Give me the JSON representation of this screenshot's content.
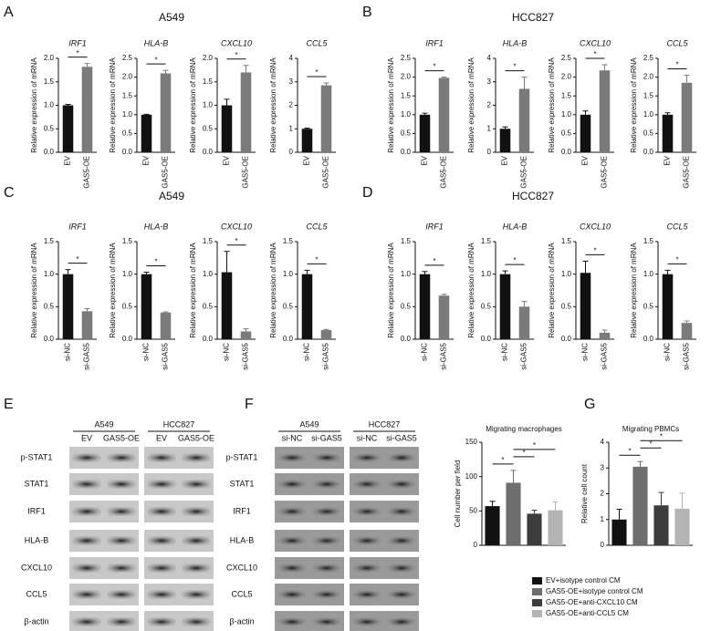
{
  "panel_labels": [
    "A",
    "B",
    "C",
    "D",
    "E",
    "F",
    "G"
  ],
  "panel_titles": [
    "A549",
    "HCC827",
    "A549",
    "HCC827"
  ],
  "chart_data": [
    {
      "type": "bar",
      "title": "IRF1",
      "ylabel": "Relative expression of mRNA",
      "categories": [
        "EV",
        "GAS5-OE"
      ],
      "values": [
        1.0,
        1.82
      ],
      "errors": [
        0.02,
        0.07
      ],
      "colors": [
        "#111111",
        "#7a7a7a"
      ],
      "ylim": [
        0,
        2
      ],
      "yticks": [
        {
          "value": 0,
          "label": "0.0"
        },
        0.5,
        {
          "value": 1,
          "label": "1.0"
        },
        1.5,
        {
          "value": 2,
          "label": "2.0"
        }
      ],
      "annotations": [
        {
          "text": "*",
          "bars": [
            0,
            1
          ]
        }
      ]
    },
    {
      "type": "bar",
      "title": "HLA-B",
      "ylabel": "Relative expression of mRNA",
      "categories": [
        "EV",
        "GAS5-OE"
      ],
      "values": [
        1.0,
        2.1
      ],
      "errors": [
        0.01,
        0.08
      ],
      "colors": [
        "#111111",
        "#7a7a7a"
      ],
      "ylim": [
        0,
        2.5
      ],
      "yticks": [
        {
          "value": 0,
          "label": "0.0"
        },
        0.5,
        {
          "value": 1,
          "label": "1.0"
        },
        1.5,
        {
          "value": 2,
          "label": "2.0"
        },
        2.5
      ],
      "annotations": [
        {
          "text": "*",
          "bars": [
            0,
            1
          ]
        }
      ]
    },
    {
      "type": "bar",
      "title": "CXCL10",
      "ylabel": "Relative expression of mRNA",
      "categories": [
        "EV",
        "GAS5-OE"
      ],
      "values": [
        1.0,
        1.7
      ],
      "errors": [
        0.13,
        0.15
      ],
      "colors": [
        "#111111",
        "#7a7a7a"
      ],
      "ylim": [
        0,
        2
      ],
      "yticks": [
        {
          "value": 0,
          "label": "0.0"
        },
        0.5,
        {
          "value": 1,
          "label": "1.0"
        },
        1.5,
        {
          "value": 2,
          "label": "2.0"
        }
      ],
      "annotations": [
        {
          "text": "*",
          "bars": [
            0,
            1
          ]
        }
      ]
    },
    {
      "type": "bar",
      "title": "CCL5",
      "ylabel": "Relative expression of mRNA",
      "categories": [
        "EV",
        "GAS5-OE"
      ],
      "values": [
        1.0,
        2.85
      ],
      "errors": [
        0.03,
        0.1
      ],
      "colors": [
        "#111111",
        "#7a7a7a"
      ],
      "ylim": [
        0,
        4
      ],
      "yticks": [
        0,
        1,
        2,
        3,
        4
      ],
      "annotations": [
        {
          "text": "*",
          "bars": [
            0,
            1
          ]
        }
      ]
    },
    {
      "type": "bar",
      "title": "IRF1",
      "ylabel": "Relative expression of mRNA",
      "categories": [
        "EV",
        "GAS5-OE"
      ],
      "values": [
        1.0,
        1.98
      ],
      "errors": [
        0.04,
        0.02
      ],
      "colors": [
        "#111111",
        "#7a7a7a"
      ],
      "ylim": [
        0,
        2.5
      ],
      "yticks": [
        {
          "value": 0,
          "label": "0.0"
        },
        0.5,
        {
          "value": 1,
          "label": "1.0"
        },
        1.5,
        {
          "value": 2,
          "label": "2.0"
        },
        2.5
      ],
      "annotations": [
        {
          "text": "*",
          "bars": [
            0,
            1
          ]
        }
      ]
    },
    {
      "type": "bar",
      "title": "HLA-B",
      "ylabel": "Relative expression of mRNA",
      "categories": [
        "EV",
        "GAS5-OE"
      ],
      "values": [
        1.0,
        2.7
      ],
      "errors": [
        0.08,
        0.5
      ],
      "colors": [
        "#111111",
        "#7a7a7a"
      ],
      "ylim": [
        0,
        4
      ],
      "yticks": [
        0,
        1,
        2,
        3,
        4
      ],
      "annotations": [
        {
          "text": "*",
          "bars": [
            0,
            1
          ]
        }
      ]
    },
    {
      "type": "bar",
      "title": "CXCL10",
      "ylabel": "Relative expression of mRNA",
      "categories": [
        "EV",
        "GAS5-OE"
      ],
      "values": [
        1.0,
        2.18
      ],
      "errors": [
        0.1,
        0.15
      ],
      "colors": [
        "#111111",
        "#7a7a7a"
      ],
      "ylim": [
        0,
        2.5
      ],
      "yticks": [
        {
          "value": 0,
          "label": "0.0"
        },
        0.5,
        {
          "value": 1,
          "label": "1.0"
        },
        1.5,
        {
          "value": 2,
          "label": "2.0"
        },
        2.5
      ],
      "annotations": [
        {
          "text": "*",
          "bars": [
            0,
            1
          ]
        }
      ]
    },
    {
      "type": "bar",
      "title": "CCL5",
      "ylabel": "Relative expression of mRNA",
      "categories": [
        "EV",
        "GAS5-OE"
      ],
      "values": [
        1.0,
        1.85
      ],
      "errors": [
        0.05,
        0.2
      ],
      "colors": [
        "#111111",
        "#7a7a7a"
      ],
      "ylim": [
        0,
        2.5
      ],
      "yticks": [
        {
          "value": 0,
          "label": "0.0"
        },
        0.5,
        {
          "value": 1,
          "label": "1.0"
        },
        1.5,
        {
          "value": 2,
          "label": "2.0"
        },
        2.5
      ],
      "annotations": [
        {
          "text": "*",
          "bars": [
            0,
            1
          ]
        }
      ]
    },
    {
      "type": "bar",
      "title": "IRF1",
      "ylabel": "Relative expression of mRNA",
      "categories": [
        "si-NC",
        "si-GAS5"
      ],
      "values": [
        1.0,
        0.43
      ],
      "errors": [
        0.07,
        0.04
      ],
      "colors": [
        "#111111",
        "#7a7a7a"
      ],
      "ylim": [
        0,
        1.5
      ],
      "yticks": [
        {
          "value": 0,
          "label": "0.0"
        },
        0.5,
        {
          "value": 1,
          "label": "1.0"
        },
        1.5
      ],
      "annotations": [
        {
          "text": "*",
          "bars": [
            0,
            1
          ]
        }
      ]
    },
    {
      "type": "bar",
      "title": "HLA-B",
      "ylabel": "Relative expression of mRNA",
      "categories": [
        "si-NC",
        "si-GAS5"
      ],
      "values": [
        1.0,
        0.41
      ],
      "errors": [
        0.03,
        0.01
      ],
      "colors": [
        "#111111",
        "#7a7a7a"
      ],
      "ylim": [
        0,
        1.5
      ],
      "yticks": [
        {
          "value": 0,
          "label": "0.0"
        },
        0.5,
        {
          "value": 1,
          "label": "1.0"
        },
        1.5
      ],
      "annotations": [
        {
          "text": "*",
          "bars": [
            0,
            1
          ]
        }
      ]
    },
    {
      "type": "bar",
      "title": "CXCL10",
      "ylabel": "Relative expression of mRNA",
      "categories": [
        "si-NC",
        "si-GAS5"
      ],
      "values": [
        1.03,
        0.12
      ],
      "errors": [
        0.32,
        0.04
      ],
      "colors": [
        "#111111",
        "#7a7a7a"
      ],
      "ylim": [
        0,
        1.5
      ],
      "yticks": [
        {
          "value": 0,
          "label": "0.0"
        },
        0.5,
        {
          "value": 1,
          "label": "1.0"
        },
        1.5
      ],
      "annotations": [
        {
          "text": "*",
          "bars": [
            0,
            1
          ]
        }
      ]
    },
    {
      "type": "bar",
      "title": "CCL5",
      "ylabel": "Relative expression of mRNA",
      "categories": [
        "si-NC",
        "si-GAS5"
      ],
      "values": [
        1.0,
        0.14
      ],
      "errors": [
        0.06,
        0.01
      ],
      "colors": [
        "#111111",
        "#7a7a7a"
      ],
      "ylim": [
        0,
        1.5
      ],
      "yticks": [
        {
          "value": 0,
          "label": "0.0"
        },
        0.5,
        {
          "value": 1,
          "label": "1.0"
        },
        1.5
      ],
      "annotations": [
        {
          "text": "*",
          "bars": [
            0,
            1
          ]
        }
      ]
    },
    {
      "type": "bar",
      "title": "IRF1",
      "ylabel": "Relative expression of mRNA",
      "categories": [
        "si-NC",
        "si-GAS5"
      ],
      "values": [
        1.0,
        0.67
      ],
      "errors": [
        0.04,
        0.02
      ],
      "colors": [
        "#111111",
        "#7a7a7a"
      ],
      "ylim": [
        0,
        1.5
      ],
      "yticks": [
        {
          "value": 0,
          "label": "0.0"
        },
        0.5,
        {
          "value": 1,
          "label": "1.0"
        },
        1.5
      ],
      "annotations": [
        {
          "text": "*",
          "bars": [
            0,
            1
          ]
        }
      ]
    },
    {
      "type": "bar",
      "title": "HLA-B",
      "ylabel": "Relative expression of mRNA",
      "categories": [
        "si-NC",
        "si-GAS5"
      ],
      "values": [
        1.0,
        0.5
      ],
      "errors": [
        0.05,
        0.08
      ],
      "colors": [
        "#111111",
        "#7a7a7a"
      ],
      "ylim": [
        0,
        1.5
      ],
      "yticks": [
        {
          "value": 0,
          "label": "0.0"
        },
        0.5,
        {
          "value": 1,
          "label": "1.0"
        },
        1.5
      ],
      "annotations": [
        {
          "text": "*",
          "bars": [
            0,
            1
          ]
        }
      ]
    },
    {
      "type": "bar",
      "title": "CXCL10",
      "ylabel": "Relative expression of mRNA",
      "categories": [
        "si-NC",
        "si-GAS5"
      ],
      "values": [
        1.02,
        0.1
      ],
      "errors": [
        0.18,
        0.04
      ],
      "colors": [
        "#111111",
        "#7a7a7a"
      ],
      "ylim": [
        0,
        1.5
      ],
      "yticks": [
        {
          "value": 0,
          "label": "0.0"
        },
        0.5,
        {
          "value": 1,
          "label": "1.0"
        },
        1.5
      ],
      "annotations": [
        {
          "text": "*",
          "bars": [
            0,
            1
          ]
        }
      ]
    },
    {
      "type": "bar",
      "title": "CCL5",
      "ylabel": "Relative expression of mRNA",
      "categories": [
        "si-NC",
        "si-GAS5"
      ],
      "values": [
        1.0,
        0.25
      ],
      "errors": [
        0.06,
        0.03
      ],
      "colors": [
        "#111111",
        "#7a7a7a"
      ],
      "ylim": [
        0,
        1.5
      ],
      "yticks": [
        {
          "value": 0,
          "label": "0.0"
        },
        0.5,
        {
          "value": 1,
          "label": "1.0"
        },
        1.5
      ],
      "annotations": [
        {
          "text": "*",
          "bars": [
            0,
            1
          ]
        }
      ]
    },
    {
      "type": "bar",
      "title": "Migrating macrophages",
      "ylabel": "Cell number per field",
      "values": [
        57,
        91,
        46,
        51
      ],
      "errors": [
        7,
        18,
        5,
        12
      ],
      "ylim": [
        0,
        150
      ],
      "yticks": [
        0,
        50,
        100,
        150
      ],
      "annotations": [
        {
          "text": "*",
          "bars": [
            0,
            1
          ]
        },
        {
          "text": "*",
          "bars": [
            1,
            2
          ]
        },
        {
          "text": "*",
          "bars": [
            1,
            3
          ]
        }
      ]
    },
    {
      "type": "bar",
      "title": "Migrating PBMCs",
      "ylabel": "Relative cell count",
      "values": [
        1.0,
        3.05,
        1.55,
        1.42
      ],
      "errors": [
        0.4,
        0.2,
        0.5,
        0.6
      ],
      "ylim": [
        0,
        4
      ],
      "yticks": [
        0,
        1,
        2,
        3,
        4
      ],
      "annotations": [
        {
          "text": "*",
          "bars": [
            0,
            1
          ]
        },
        {
          "text": "*",
          "bars": [
            1,
            2
          ]
        },
        {
          "text": "*",
          "bars": [
            1,
            3
          ]
        }
      ]
    }
  ],
  "legend": [
    {
      "name": "EV+isotype control CM",
      "color": "#111111"
    },
    {
      "name": "GAS5-OE+isotype control CM",
      "color": "#6e6e6e"
    },
    {
      "name": "GAS5-OE+anti-CXCL10 CM",
      "color": "#3c3c3c"
    },
    {
      "name": "GAS5-OE+anti-CCL5 CM",
      "color": "#b4b4b4"
    }
  ],
  "blots": [
    {
      "groups": [
        "A549",
        "HCC827"
      ],
      "lanes": [
        "EV",
        "GAS5-OE",
        "EV",
        "GAS5-OE"
      ],
      "rows": [
        "p-STAT1",
        "STAT1",
        "IRF1",
        "HLA-B",
        "CXCL10",
        "CCL5",
        "β-actin"
      ]
    },
    {
      "groups": [
        "A549",
        "HCC827"
      ],
      "lanes": [
        "si-NC",
        "si-GAS5",
        "si-NC",
        "si-GAS5"
      ],
      "rows": [
        "p-STAT1",
        "STAT1",
        "IRF1",
        "HLA-B",
        "CXCL10",
        "CCL5",
        "β-actin"
      ]
    }
  ]
}
